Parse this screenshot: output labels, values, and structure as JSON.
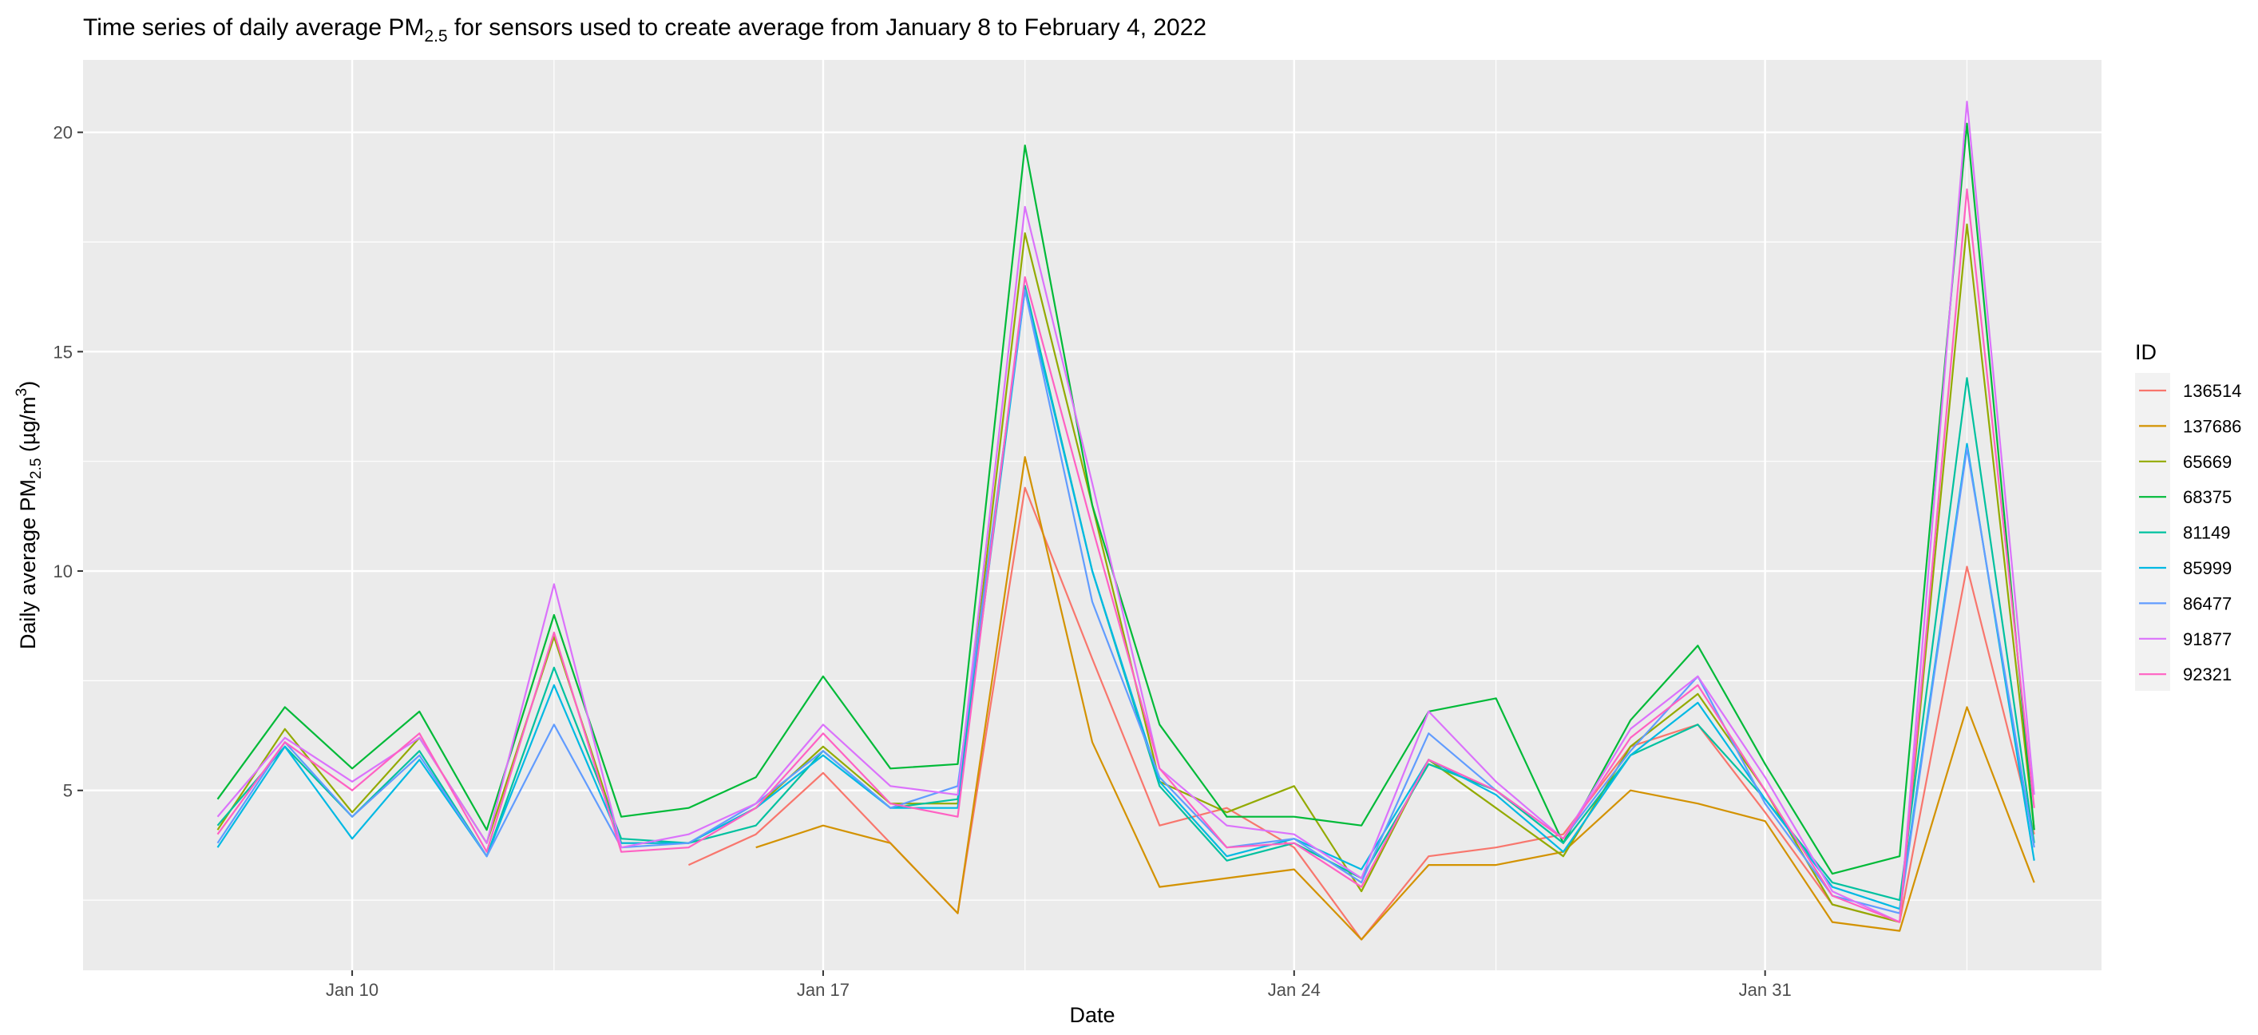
{
  "chart_data": {
    "type": "line",
    "title_main": "Time series of daily average PM",
    "title_sub": "2.5",
    "title_rest": " for sensors used to create average from January 8 to February 4, 2022",
    "xlabel": "Date",
    "ylabel_main": "Daily average PM",
    "ylabel_sub": "2.5",
    "ylabel_rest": " (µg/m",
    "ylabel_sup": "3",
    "ylabel_end": ")",
    "legend_title": "ID",
    "legend_position": "right",
    "grid": true,
    "x_ticks": [
      "Jan 10",
      "Jan 17",
      "Jan 24",
      "Jan 31"
    ],
    "x_tick_positions": [
      "2022-01-10",
      "2022-01-17",
      "2022-01-24",
      "2022-01-31"
    ],
    "x_minor_ticks": [
      "2022-01-13",
      "2022-01-20",
      "2022-01-27",
      "2022-02-03"
    ],
    "y_ticks": [
      5,
      10,
      15,
      20
    ],
    "y_minor_ticks": [
      2.5,
      7.5,
      12.5,
      17.5
    ],
    "xlim": [
      "2022-01-06",
      "2022-02-05"
    ],
    "ylim": [
      0.9,
      21.65
    ],
    "x": [
      "2022-01-08",
      "2022-01-09",
      "2022-01-10",
      "2022-01-11",
      "2022-01-12",
      "2022-01-13",
      "2022-01-14",
      "2022-01-15",
      "2022-01-16",
      "2022-01-17",
      "2022-01-18",
      "2022-01-19",
      "2022-01-20",
      "2022-01-21",
      "2022-01-22",
      "2022-01-23",
      "2022-01-24",
      "2022-01-25",
      "2022-01-26",
      "2022-01-27",
      "2022-01-28",
      "2022-01-29",
      "2022-01-30",
      "2022-01-31",
      "2022-02-01",
      "2022-02-02",
      "2022-02-03",
      "2022-02-04"
    ],
    "series": [
      {
        "name": "136514",
        "color": "#F8766D",
        "values": [
          null,
          null,
          null,
          null,
          null,
          null,
          null,
          3.3,
          4.0,
          5.4,
          3.8,
          2.2,
          11.9,
          8.0,
          4.2,
          4.6,
          3.7,
          1.6,
          3.5,
          3.7,
          4.0,
          6.0,
          6.5,
          4.5,
          2.4,
          2.0,
          10.1,
          4.0
        ]
      },
      {
        "name": "137686",
        "color": "#D39200",
        "values": [
          null,
          null,
          null,
          null,
          null,
          null,
          null,
          null,
          3.7,
          4.2,
          3.8,
          2.2,
          12.6,
          6.1,
          2.8,
          3.0,
          3.2,
          1.6,
          3.3,
          3.3,
          3.6,
          5.0,
          4.7,
          4.3,
          2.0,
          1.8,
          6.9,
          2.9
        ]
      },
      {
        "name": "65669",
        "color": "#93AA00",
        "values": [
          4.1,
          6.4,
          4.5,
          6.2,
          3.8,
          8.5,
          3.8,
          3.8,
          4.6,
          6.0,
          4.7,
          4.7,
          17.7,
          11.5,
          5.2,
          4.5,
          5.1,
          2.7,
          5.7,
          4.6,
          3.5,
          6.0,
          7.2,
          5.0,
          2.4,
          2.0,
          17.9,
          4.1
        ]
      },
      {
        "name": "68375",
        "color": "#00BA38",
        "values": [
          4.8,
          6.9,
          5.5,
          6.8,
          4.1,
          9.0,
          4.4,
          4.6,
          5.3,
          7.6,
          5.5,
          5.6,
          19.7,
          11.5,
          6.5,
          4.4,
          4.4,
          4.2,
          6.8,
          7.1,
          3.8,
          6.6,
          8.3,
          5.6,
          3.1,
          3.5,
          20.2,
          4.1
        ]
      },
      {
        "name": "81149",
        "color": "#00C19F",
        "values": [
          4.2,
          6.0,
          4.4,
          5.9,
          3.5,
          7.8,
          3.9,
          3.8,
          4.2,
          5.9,
          4.6,
          4.8,
          16.5,
          10.0,
          5.1,
          3.4,
          3.8,
          3.0,
          5.6,
          5.0,
          3.8,
          5.8,
          6.5,
          4.8,
          2.9,
          2.5,
          14.4,
          3.8
        ]
      },
      {
        "name": "85999",
        "color": "#00B9E3",
        "values": [
          3.7,
          6.0,
          3.9,
          5.7,
          3.5,
          7.4,
          3.8,
          3.8,
          4.6,
          5.8,
          4.6,
          4.6,
          16.4,
          10.0,
          5.2,
          3.5,
          3.9,
          3.2,
          5.7,
          4.9,
          3.6,
          5.8,
          7.0,
          4.8,
          2.8,
          2.3,
          12.9,
          3.4
        ]
      },
      {
        "name": "86477",
        "color": "#619CFF",
        "values": [
          3.8,
          6.1,
          4.4,
          5.8,
          3.5,
          6.5,
          3.7,
          3.8,
          4.7,
          5.9,
          4.6,
          5.1,
          16.4,
          9.3,
          5.3,
          3.7,
          3.9,
          2.9,
          6.3,
          5.0,
          3.9,
          5.9,
          7.6,
          4.7,
          2.6,
          2.2,
          12.8,
          3.7
        ]
      },
      {
        "name": "91877",
        "color": "#DB72FB",
        "values": [
          4.4,
          6.2,
          5.2,
          6.2,
          3.8,
          9.7,
          3.7,
          4.0,
          4.7,
          6.5,
          5.1,
          4.9,
          18.3,
          12.0,
          5.5,
          4.2,
          4.0,
          3.0,
          6.8,
          5.2,
          3.9,
          6.4,
          7.6,
          5.3,
          2.7,
          2.0,
          20.7,
          4.9
        ]
      },
      {
        "name": "92321",
        "color": "#FF61C3",
        "values": [
          4.0,
          6.1,
          5.0,
          6.3,
          3.6,
          8.6,
          3.6,
          3.7,
          4.6,
          6.3,
          4.7,
          4.4,
          16.7,
          11.0,
          5.5,
          3.7,
          3.8,
          2.8,
          5.7,
          5.0,
          3.9,
          6.2,
          7.4,
          5.0,
          2.6,
          2.0,
          18.7,
          4.6
        ]
      }
    ]
  }
}
